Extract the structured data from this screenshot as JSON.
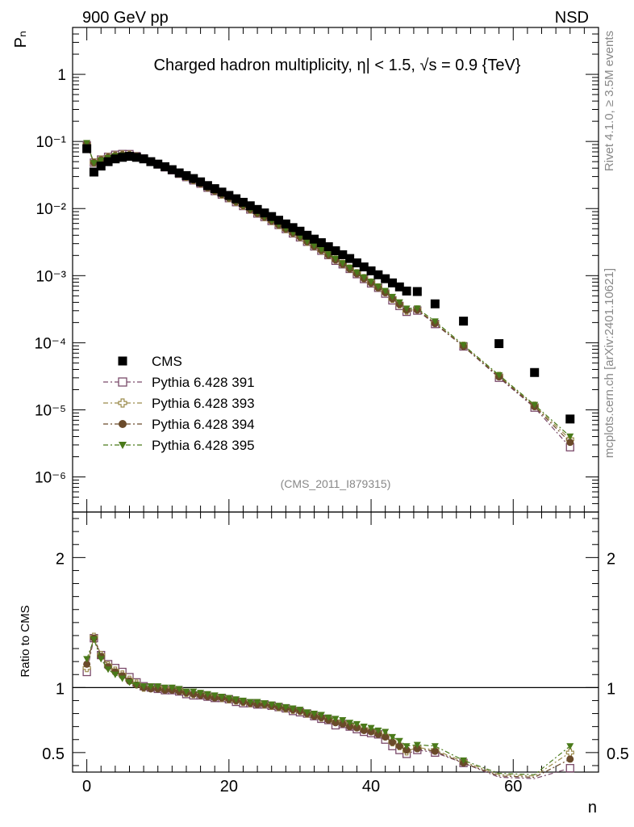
{
  "header": {
    "left": "900 GeV pp",
    "right": "NSD"
  },
  "side": {
    "rivet": "Rivet 4.1.0, ≥ 3.5M events",
    "mcplots": "mcplots.cern.ch [arXiv:2401.10621]"
  },
  "chart_data": [
    {
      "type": "scatter",
      "title": "Charged hadron multiplicity, η| < 1.5, √s = 0.9 {TeV}",
      "ylabel": "Pₙ",
      "xlabel": "n",
      "yscale": "log",
      "xlim": [
        -2,
        72
      ],
      "ylim": [
        3e-07,
        5
      ],
      "analysis": "(CMS_2011_I879315)",
      "yticks": [
        {
          "v": 1e-06,
          "label": "10⁻⁶"
        },
        {
          "v": 1e-05,
          "label": "10⁻⁵"
        },
        {
          "v": 0.0001,
          "label": "10⁻⁴"
        },
        {
          "v": 0.001,
          "label": "10⁻³"
        },
        {
          "v": 0.01,
          "label": "10⁻²"
        },
        {
          "v": 0.1,
          "label": "10⁻¹"
        },
        {
          "v": 1,
          "label": "1"
        }
      ],
      "legend": [
        {
          "name": "CMS",
          "marker": "square-filled",
          "color": "#000000"
        },
        {
          "name": "Pythia 6.428 391",
          "marker": "square-open",
          "color": "#7a4a6a"
        },
        {
          "name": "Pythia 6.428 393",
          "marker": "cross-open",
          "color": "#9a8a4a"
        },
        {
          "name": "Pythia 6.428 394",
          "marker": "circle-filled",
          "color": "#6a4a2a"
        },
        {
          "name": "Pythia 6.428 395",
          "marker": "triangle-down-filled",
          "color": "#4a7a1a"
        }
      ],
      "cms": {
        "x": [
          0,
          1,
          2,
          3,
          4,
          5,
          6,
          7,
          8,
          9,
          10,
          11,
          12,
          13,
          14,
          15,
          16,
          17,
          18,
          19,
          20,
          21,
          22,
          23,
          24,
          25,
          26,
          27,
          28,
          29,
          30,
          31,
          32,
          33,
          34,
          35,
          36,
          37,
          38,
          39,
          40,
          41,
          42,
          43,
          44,
          45,
          46.5,
          49,
          53,
          58,
          63,
          68
        ],
        "y": [
          0.078,
          0.035,
          0.043,
          0.05,
          0.055,
          0.058,
          0.06,
          0.058,
          0.055,
          0.05,
          0.046,
          0.042,
          0.038,
          0.034,
          0.031,
          0.028,
          0.025,
          0.022,
          0.0198,
          0.0176,
          0.0157,
          0.014,
          0.0124,
          0.011,
          0.0097,
          0.0086,
          0.0076,
          0.0067,
          0.0059,
          0.0052,
          0.0046,
          0.004,
          0.0035,
          0.0031,
          0.0027,
          0.00235,
          0.00205,
          0.0018,
          0.00155,
          0.00135,
          0.00118,
          0.00103,
          0.0009,
          0.00078,
          0.00068,
          0.00059,
          0.00058,
          0.00038,
          0.00021,
          9.7e-05,
          3.6e-05,
          7.3e-06
        ]
      }
    },
    {
      "type": "line",
      "ylabel": "Ratio to CMS",
      "xlabel": "n",
      "xlim": [
        -2,
        72
      ],
      "ylim": [
        0.35,
        2.35
      ],
      "yticks": [
        {
          "v": 0.5,
          "label": "0.5"
        },
        {
          "v": 1,
          "label": "1"
        },
        {
          "v": 2,
          "label": "2"
        }
      ],
      "xticks": [
        {
          "v": 0,
          "label": "0"
        },
        {
          "v": 20,
          "label": "20"
        },
        {
          "v": 40,
          "label": "40"
        },
        {
          "v": 60,
          "label": "60"
        }
      ],
      "reference": 1,
      "series": [
        {
          "name": "Pythia 6.428 391",
          "ratio": [
            [
              0,
              1.12
            ],
            [
              1,
              1.38
            ],
            [
              2,
              1.25
            ],
            [
              3,
              1.18
            ],
            [
              4,
              1.15
            ],
            [
              5,
              1.12
            ],
            [
              6,
              1.08
            ],
            [
              7,
              1.04
            ],
            [
              8,
              1.01
            ],
            [
              9,
              1.0
            ],
            [
              10,
              0.99
            ],
            [
              11,
              0.98
            ],
            [
              12,
              0.98
            ],
            [
              13,
              0.97
            ],
            [
              14,
              0.95
            ],
            [
              15,
              0.94
            ],
            [
              16,
              0.94
            ],
            [
              17,
              0.93
            ],
            [
              18,
              0.92
            ],
            [
              19,
              0.92
            ],
            [
              20,
              0.91
            ],
            [
              21,
              0.89
            ],
            [
              22,
              0.88
            ],
            [
              23,
              0.88
            ],
            [
              24,
              0.87
            ],
            [
              25,
              0.87
            ],
            [
              26,
              0.86
            ],
            [
              27,
              0.85
            ],
            [
              28,
              0.84
            ],
            [
              29,
              0.82
            ],
            [
              30,
              0.81
            ],
            [
              31,
              0.8
            ],
            [
              32,
              0.78
            ],
            [
              33,
              0.76
            ],
            [
              34,
              0.75
            ],
            [
              35,
              0.71
            ],
            [
              36,
              0.72
            ],
            [
              37,
              0.7
            ],
            [
              38,
              0.68
            ],
            [
              39,
              0.66
            ],
            [
              40,
              0.65
            ],
            [
              41,
              0.64
            ],
            [
              42,
              0.6
            ],
            [
              43,
              0.55
            ],
            [
              44,
              0.52
            ],
            [
              45,
              0.49
            ],
            [
              46.5,
              0.52
            ],
            [
              49,
              0.5
            ],
            [
              53,
              0.42
            ],
            [
              58,
              0.31
            ],
            [
              63,
              0.3
            ],
            [
              68,
              0.38
            ]
          ]
        },
        {
          "name": "Pythia 6.428 393",
          "ratio": [
            [
              0,
              1.15
            ],
            [
              1,
              1.39
            ],
            [
              2,
              1.25
            ],
            [
              3,
              1.17
            ],
            [
              4,
              1.13
            ],
            [
              5,
              1.1
            ],
            [
              6,
              1.06
            ],
            [
              7,
              1.03
            ],
            [
              8,
              1.0
            ],
            [
              9,
              1.0
            ],
            [
              10,
              1.0
            ],
            [
              11,
              0.99
            ],
            [
              12,
              0.99
            ],
            [
              13,
              0.98
            ],
            [
              14,
              0.96
            ],
            [
              15,
              0.95
            ],
            [
              16,
              0.95
            ],
            [
              17,
              0.94
            ],
            [
              18,
              0.93
            ],
            [
              19,
              0.92
            ],
            [
              20,
              0.91
            ],
            [
              21,
              0.9
            ],
            [
              22,
              0.89
            ],
            [
              23,
              0.88
            ],
            [
              24,
              0.88
            ],
            [
              25,
              0.87
            ],
            [
              26,
              0.86
            ],
            [
              27,
              0.85
            ],
            [
              28,
              0.84
            ],
            [
              29,
              0.83
            ],
            [
              30,
              0.82
            ],
            [
              31,
              0.8
            ],
            [
              32,
              0.79
            ],
            [
              33,
              0.77
            ],
            [
              34,
              0.76
            ],
            [
              35,
              0.74
            ],
            [
              36,
              0.73
            ],
            [
              37,
              0.71
            ],
            [
              38,
              0.7
            ],
            [
              39,
              0.68
            ],
            [
              40,
              0.67
            ],
            [
              41,
              0.65
            ],
            [
              42,
              0.63
            ],
            [
              43,
              0.58
            ],
            [
              44,
              0.55
            ],
            [
              45,
              0.51
            ],
            [
              46.5,
              0.54
            ],
            [
              49,
              0.52
            ],
            [
              53,
              0.43
            ],
            [
              58,
              0.33
            ],
            [
              63,
              0.32
            ],
            [
              68,
              0.5
            ]
          ]
        },
        {
          "name": "Pythia 6.428 394",
          "ratio": [
            [
              0,
              1.18
            ],
            [
              1,
              1.38
            ],
            [
              2,
              1.24
            ],
            [
              3,
              1.16
            ],
            [
              4,
              1.12
            ],
            [
              5,
              1.09
            ],
            [
              6,
              1.05
            ],
            [
              7,
              1.02
            ],
            [
              8,
              1.0
            ],
            [
              9,
              0.99
            ],
            [
              10,
              0.99
            ],
            [
              11,
              0.98
            ],
            [
              12,
              0.98
            ],
            [
              13,
              0.97
            ],
            [
              14,
              0.96
            ],
            [
              15,
              0.95
            ],
            [
              16,
              0.94
            ],
            [
              17,
              0.93
            ],
            [
              18,
              0.92
            ],
            [
              19,
              0.92
            ],
            [
              20,
              0.91
            ],
            [
              21,
              0.9
            ],
            [
              22,
              0.89
            ],
            [
              23,
              0.88
            ],
            [
              24,
              0.87
            ],
            [
              25,
              0.87
            ],
            [
              26,
              0.86
            ],
            [
              27,
              0.85
            ],
            [
              28,
              0.84
            ],
            [
              29,
              0.83
            ],
            [
              30,
              0.82
            ],
            [
              31,
              0.8
            ],
            [
              32,
              0.78
            ],
            [
              33,
              0.77
            ],
            [
              34,
              0.75
            ],
            [
              35,
              0.73
            ],
            [
              36,
              0.72
            ],
            [
              37,
              0.7
            ],
            [
              38,
              0.69
            ],
            [
              39,
              0.67
            ],
            [
              40,
              0.66
            ],
            [
              41,
              0.64
            ],
            [
              42,
              0.62
            ],
            [
              43,
              0.58
            ],
            [
              44,
              0.55
            ],
            [
              45,
              0.52
            ],
            [
              46.5,
              0.53
            ],
            [
              49,
              0.51
            ],
            [
              53,
              0.42
            ],
            [
              58,
              0.32
            ],
            [
              63,
              0.31
            ],
            [
              68,
              0.45
            ]
          ]
        },
        {
          "name": "Pythia 6.428 395",
          "ratio": [
            [
              0,
              1.22
            ],
            [
              1,
              1.37
            ],
            [
              2,
              1.22
            ],
            [
              3,
              1.14
            ],
            [
              4,
              1.1
            ],
            [
              5,
              1.07
            ],
            [
              6,
              1.04
            ],
            [
              7,
              1.02
            ],
            [
              8,
              1.01
            ],
            [
              9,
              1.01
            ],
            [
              10,
              1.01
            ],
            [
              11,
              1.0
            ],
            [
              12,
              1.0
            ],
            [
              13,
              0.99
            ],
            [
              14,
              0.97
            ],
            [
              15,
              0.97
            ],
            [
              16,
              0.96
            ],
            [
              17,
              0.95
            ],
            [
              18,
              0.94
            ],
            [
              19,
              0.93
            ],
            [
              20,
              0.92
            ],
            [
              21,
              0.91
            ],
            [
              22,
              0.9
            ],
            [
              23,
              0.89
            ],
            [
              24,
              0.89
            ],
            [
              25,
              0.88
            ],
            [
              26,
              0.87
            ],
            [
              27,
              0.86
            ],
            [
              28,
              0.85
            ],
            [
              29,
              0.84
            ],
            [
              30,
              0.83
            ],
            [
              31,
              0.81
            ],
            [
              32,
              0.8
            ],
            [
              33,
              0.79
            ],
            [
              34,
              0.77
            ],
            [
              35,
              0.76
            ],
            [
              36,
              0.75
            ],
            [
              37,
              0.73
            ],
            [
              38,
              0.72
            ],
            [
              39,
              0.7
            ],
            [
              40,
              0.69
            ],
            [
              41,
              0.67
            ],
            [
              42,
              0.66
            ],
            [
              43,
              0.62
            ],
            [
              44,
              0.59
            ],
            [
              45,
              0.55
            ],
            [
              46.5,
              0.56
            ],
            [
              49,
              0.55
            ],
            [
              53,
              0.44
            ],
            [
              58,
              0.34
            ],
            [
              63,
              0.33
            ],
            [
              68,
              0.55
            ]
          ]
        }
      ]
    }
  ]
}
